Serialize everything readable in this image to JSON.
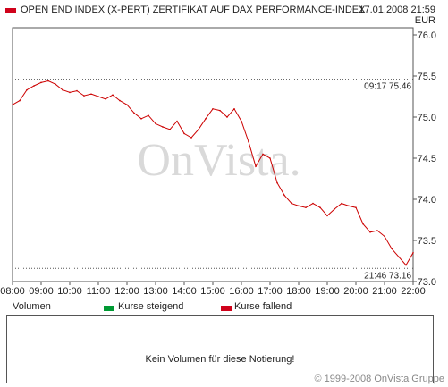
{
  "header": {
    "title": "OPEN END INDEX (X-PERT) ZERTIFIKAT AUF DAX PERFORMANCE-INDEX",
    "date_time": "17.01.2008 21:59",
    "currency": "EUR",
    "series_color": "#d0021b"
  },
  "watermark": "OnVista.",
  "chart_data": {
    "type": "line",
    "title": "OPEN END INDEX (X-PERT) ZERTIFIKAT AUF DAX PERFORMANCE-INDEX",
    "xlabel": "",
    "ylabel": "EUR",
    "x_ticks": [
      "08:00",
      "09:00",
      "10:00",
      "11:00",
      "12:00",
      "13:00",
      "14:00",
      "15:00",
      "16:00",
      "17:00",
      "18:00",
      "19:00",
      "20:00",
      "21:00",
      "22:00"
    ],
    "y_ticks": [
      73.0,
      73.5,
      74.0,
      74.5,
      75.0,
      75.5,
      76.0
    ],
    "xlim": [
      "08:00",
      "22:00"
    ],
    "ylim": [
      73.0,
      76.0
    ],
    "grid": false,
    "color": "#cc0000",
    "x": [
      "08:00",
      "08:15",
      "08:30",
      "08:45",
      "09:00",
      "09:15",
      "09:30",
      "09:45",
      "10:00",
      "10:15",
      "10:30",
      "10:45",
      "11:00",
      "11:15",
      "11:30",
      "11:45",
      "12:00",
      "12:15",
      "12:30",
      "12:45",
      "13:00",
      "13:15",
      "13:30",
      "13:45",
      "14:00",
      "14:15",
      "14:30",
      "14:45",
      "15:00",
      "15:15",
      "15:30",
      "15:45",
      "16:00",
      "16:15",
      "16:30",
      "16:45",
      "17:00",
      "17:15",
      "17:30",
      "17:45",
      "18:00",
      "18:15",
      "18:30",
      "18:45",
      "19:00",
      "19:15",
      "19:30",
      "19:45",
      "20:00",
      "20:15",
      "20:30",
      "20:45",
      "21:00",
      "21:15",
      "21:30",
      "21:45",
      "22:00"
    ],
    "values": [
      75.15,
      75.2,
      75.33,
      75.38,
      75.42,
      75.44,
      75.4,
      75.33,
      75.3,
      75.32,
      75.26,
      75.28,
      75.25,
      75.22,
      75.27,
      75.2,
      75.15,
      75.05,
      74.98,
      75.02,
      74.92,
      74.88,
      74.85,
      74.95,
      74.8,
      74.75,
      74.85,
      74.98,
      75.1,
      75.08,
      75.0,
      75.1,
      74.95,
      74.7,
      74.4,
      74.55,
      74.5,
      74.2,
      74.05,
      73.95,
      73.92,
      73.9,
      73.95,
      73.9,
      73.8,
      73.88,
      73.95,
      73.92,
      73.9,
      73.7,
      73.6,
      73.62,
      73.55,
      73.4,
      73.3,
      73.2,
      73.35
    ],
    "reference_lines": [
      {
        "time": "09:17",
        "value": 75.46,
        "label": "09:17 75.46"
      },
      {
        "time": "21:46",
        "value": 73.16,
        "label": "21:46 73.16"
      }
    ]
  },
  "volume": {
    "label": "Volumen",
    "legend": [
      {
        "label": "Kurse steigend",
        "color": "#009933"
      },
      {
        "label": "Kurse fallend",
        "color": "#d0021b"
      }
    ],
    "message": "Kein Volumen für diese Notierung!"
  },
  "copyright": "© 1999-2008 OnVista Gruppe"
}
